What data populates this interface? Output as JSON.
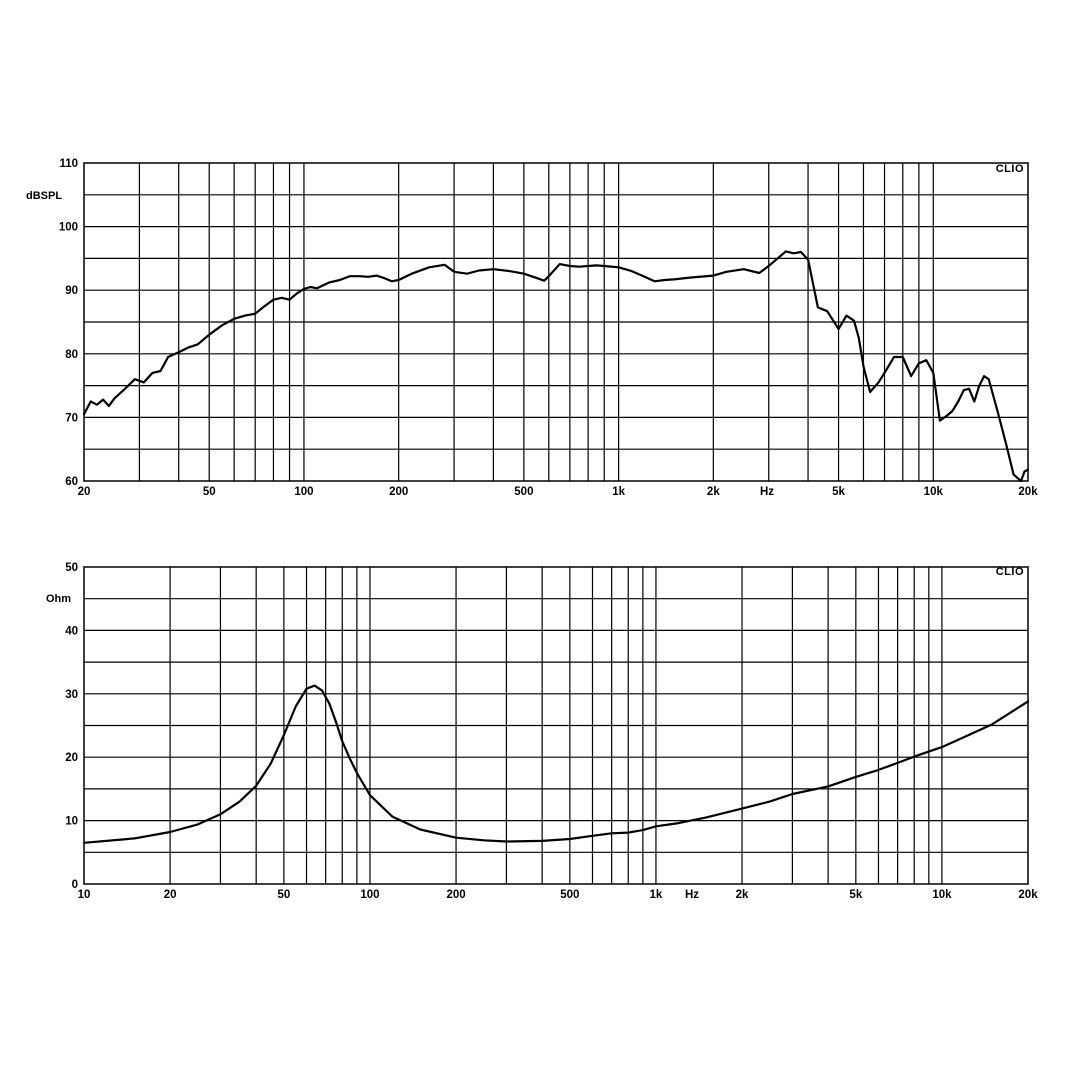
{
  "chart_data": [
    {
      "type": "line",
      "brand": "CLIO",
      "ylabel": "dBSPL",
      "xunit": "Hz",
      "xscale": "log",
      "xlim": [
        20,
        20000
      ],
      "ylim": [
        60,
        110
      ],
      "grid": true,
      "x_ticks": [
        {
          "value": 20,
          "label": "20"
        },
        {
          "value": 50,
          "label": "50"
        },
        {
          "value": 100,
          "label": "100"
        },
        {
          "value": 200,
          "label": "200"
        },
        {
          "value": 500,
          "label": "500"
        },
        {
          "value": 1000,
          "label": "1k"
        },
        {
          "value": 2000,
          "label": "2k"
        },
        {
          "value": 5000,
          "label": "5k"
        },
        {
          "value": 10000,
          "label": "10k"
        },
        {
          "value": 20000,
          "label": "20k"
        }
      ],
      "y_ticks": [
        {
          "value": 60,
          "label": "60"
        },
        {
          "value": 70,
          "label": "70"
        },
        {
          "value": 80,
          "label": "80"
        },
        {
          "value": 90,
          "label": "90"
        },
        {
          "value": 100,
          "label": "100"
        },
        {
          "value": 110,
          "label": "110"
        }
      ],
      "series": [
        {
          "x": [
            20,
            21,
            22,
            23,
            24,
            25,
            27,
            29,
            31,
            33,
            35,
            37,
            39,
            41,
            43,
            46,
            50,
            55,
            60,
            65,
            70,
            75,
            80,
            85,
            90,
            95,
            100,
            105,
            110,
            120,
            130,
            140,
            150,
            160,
            170,
            180,
            190,
            200,
            220,
            250,
            280,
            300,
            330,
            360,
            400,
            450,
            500,
            550,
            580,
            600,
            650,
            700,
            750,
            800,
            850,
            900,
            1000,
            1100,
            1200,
            1300,
            1400,
            1500,
            1700,
            2000,
            2200,
            2500,
            2800,
            3000,
            3200,
            3400,
            3600,
            3800,
            4000,
            4300,
            4600,
            5000,
            5300,
            5600,
            5800,
            6000,
            6300,
            6700,
            7000,
            7500,
            8000,
            8500,
            9000,
            9500,
            10000,
            10500,
            11000,
            11500,
            12000,
            12500,
            13000,
            13500,
            14000,
            14500,
            15000,
            16000,
            17000,
            18000,
            19000,
            19500,
            20000
          ],
          "y": [
            70.5,
            72.5,
            72,
            72.8,
            71.8,
            73,
            74.5,
            76,
            75.5,
            77,
            77.3,
            79.5,
            80,
            80.5,
            81,
            81.5,
            83,
            84.5,
            85.5,
            86,
            86.3,
            87.5,
            88.5,
            88.8,
            88.5,
            89.5,
            90.2,
            90.5,
            90.3,
            91.2,
            91.6,
            92.2,
            92.2,
            92.1,
            92.3,
            91.9,
            91.4,
            91.6,
            92.6,
            93.6,
            94,
            92.9,
            92.6,
            93.1,
            93.3,
            93,
            92.6,
            91.9,
            91.5,
            92.2,
            94.1,
            93.8,
            93.7,
            93.8,
            93.9,
            93.8,
            93.6,
            93,
            92.2,
            91.4,
            91.6,
            91.7,
            92,
            92.3,
            92.9,
            93.3,
            92.7,
            93.8,
            95,
            96.1,
            95.8,
            96,
            94.8,
            87.3,
            86.7,
            83.9,
            86,
            85.2,
            82.5,
            78,
            74,
            75.5,
            77,
            79.5,
            79.5,
            76.5,
            78.5,
            79,
            77,
            69.5,
            70.2,
            71,
            72.5,
            74.3,
            74.5,
            72.5,
            75,
            76.5,
            76,
            71,
            66,
            61,
            59,
            61.5,
            61.8
          ]
        }
      ]
    },
    {
      "type": "line",
      "brand": "CLIO",
      "ylabel": "Ohm",
      "xunit": "Hz",
      "xscale": "log",
      "xlim": [
        10,
        20000
      ],
      "ylim": [
        0,
        50
      ],
      "grid": true,
      "x_ticks": [
        {
          "value": 10,
          "label": "10"
        },
        {
          "value": 20,
          "label": "20"
        },
        {
          "value": 50,
          "label": "50"
        },
        {
          "value": 100,
          "label": "100"
        },
        {
          "value": 200,
          "label": "200"
        },
        {
          "value": 500,
          "label": "500"
        },
        {
          "value": 1000,
          "label": "1k"
        },
        {
          "value": 2000,
          "label": "2k"
        },
        {
          "value": 5000,
          "label": "5k"
        },
        {
          "value": 10000,
          "label": "10k"
        },
        {
          "value": 20000,
          "label": "20k"
        }
      ],
      "y_ticks": [
        {
          "value": 0,
          "label": "0"
        },
        {
          "value": 10,
          "label": "10"
        },
        {
          "value": 20,
          "label": "20"
        },
        {
          "value": 30,
          "label": "30"
        },
        {
          "value": 40,
          "label": "40"
        },
        {
          "value": 50,
          "label": "50"
        }
      ],
      "series": [
        {
          "x": [
            10,
            15,
            20,
            25,
            30,
            35,
            40,
            45,
            50,
            55,
            60,
            64,
            68,
            72,
            76,
            80,
            85,
            90,
            100,
            120,
            150,
            200,
            250,
            300,
            400,
            500,
            600,
            700,
            800,
            900,
            1000,
            1200,
            1500,
            2000,
            2500,
            3000,
            4000,
            5000,
            6000,
            7000,
            8000,
            10000,
            12000,
            15000,
            20000
          ],
          "y": [
            6.5,
            7.2,
            8.2,
            9.4,
            11,
            13,
            15.5,
            19,
            23.5,
            28,
            30.8,
            31.3,
            30.5,
            28.5,
            25.6,
            22.5,
            19.8,
            17.5,
            14,
            10.6,
            8.6,
            7.3,
            6.9,
            6.7,
            6.8,
            7.1,
            7.6,
            8,
            8.1,
            8.5,
            9.1,
            9.6,
            10.5,
            11.9,
            13,
            14.2,
            15.4,
            16.9,
            18,
            19.1,
            20.1,
            21.6,
            23.2,
            25.2,
            28.8
          ]
        }
      ]
    }
  ]
}
